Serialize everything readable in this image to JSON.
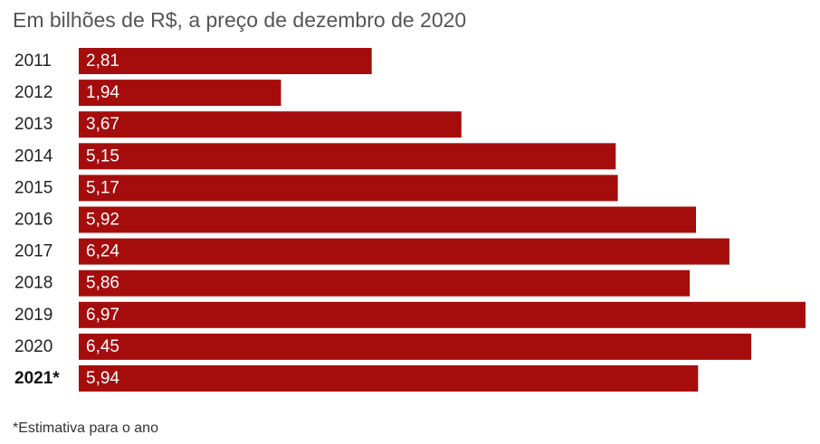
{
  "chart_data": {
    "type": "bar",
    "orientation": "horizontal",
    "title": "Em bilhões de R$, a preço de dezembro de 2020",
    "categories": [
      "2011",
      "2012",
      "2013",
      "2014",
      "2015",
      "2016",
      "2017",
      "2018",
      "2019",
      "2020",
      "2021*"
    ],
    "values": [
      2.81,
      1.94,
      3.67,
      5.15,
      5.17,
      5.92,
      6.24,
      5.86,
      6.97,
      6.45,
      5.94
    ],
    "value_labels": [
      "2,81",
      "1,94",
      "3,67",
      "5,15",
      "5,17",
      "5,92",
      "6,24",
      "5,86",
      "6,97",
      "6,45",
      "5,94"
    ],
    "emphasized_category": "2021*",
    "bar_color": "#a50d0d",
    "grid": false,
    "footnote": "*Estimativa para o ano"
  }
}
